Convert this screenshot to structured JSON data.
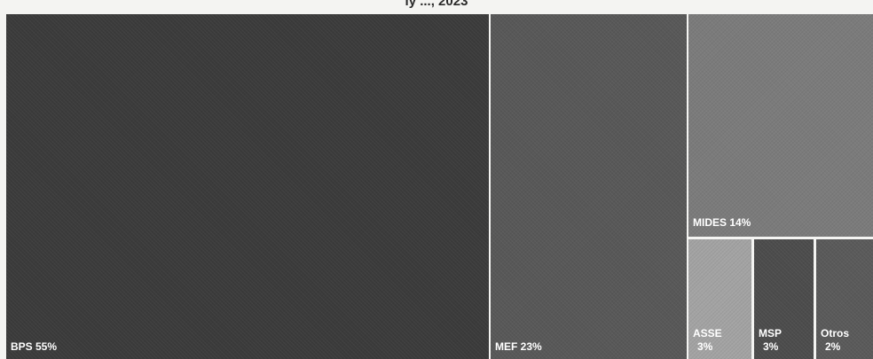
{
  "chart_data": {
    "type": "treemap",
    "title": "ly ..., 2023",
    "items": [
      {
        "name": "BPS",
        "value_pct": 55,
        "label": "BPS 55%",
        "color": "#3b3b3b"
      },
      {
        "name": "MEF",
        "value_pct": 23,
        "label": "MEF 23%",
        "color": "#585858"
      },
      {
        "name": "MIDES",
        "value_pct": 14,
        "label": "MIDES 14%",
        "color": "#7b7b7b"
      },
      {
        "name": "ASSE",
        "value_pct": 3,
        "label_top": "ASSE",
        "label_bottom": "3%",
        "color": "#a3a3a3"
      },
      {
        "name": "MSP",
        "value_pct": 3,
        "label_top": "MSP",
        "label_bottom": "3%",
        "color": "#4c4c4c"
      },
      {
        "name": "Otros",
        "value_pct": 2,
        "label_top": "Otros",
        "label_bottom": "2%",
        "color": "#5a5a5a"
      }
    ]
  }
}
